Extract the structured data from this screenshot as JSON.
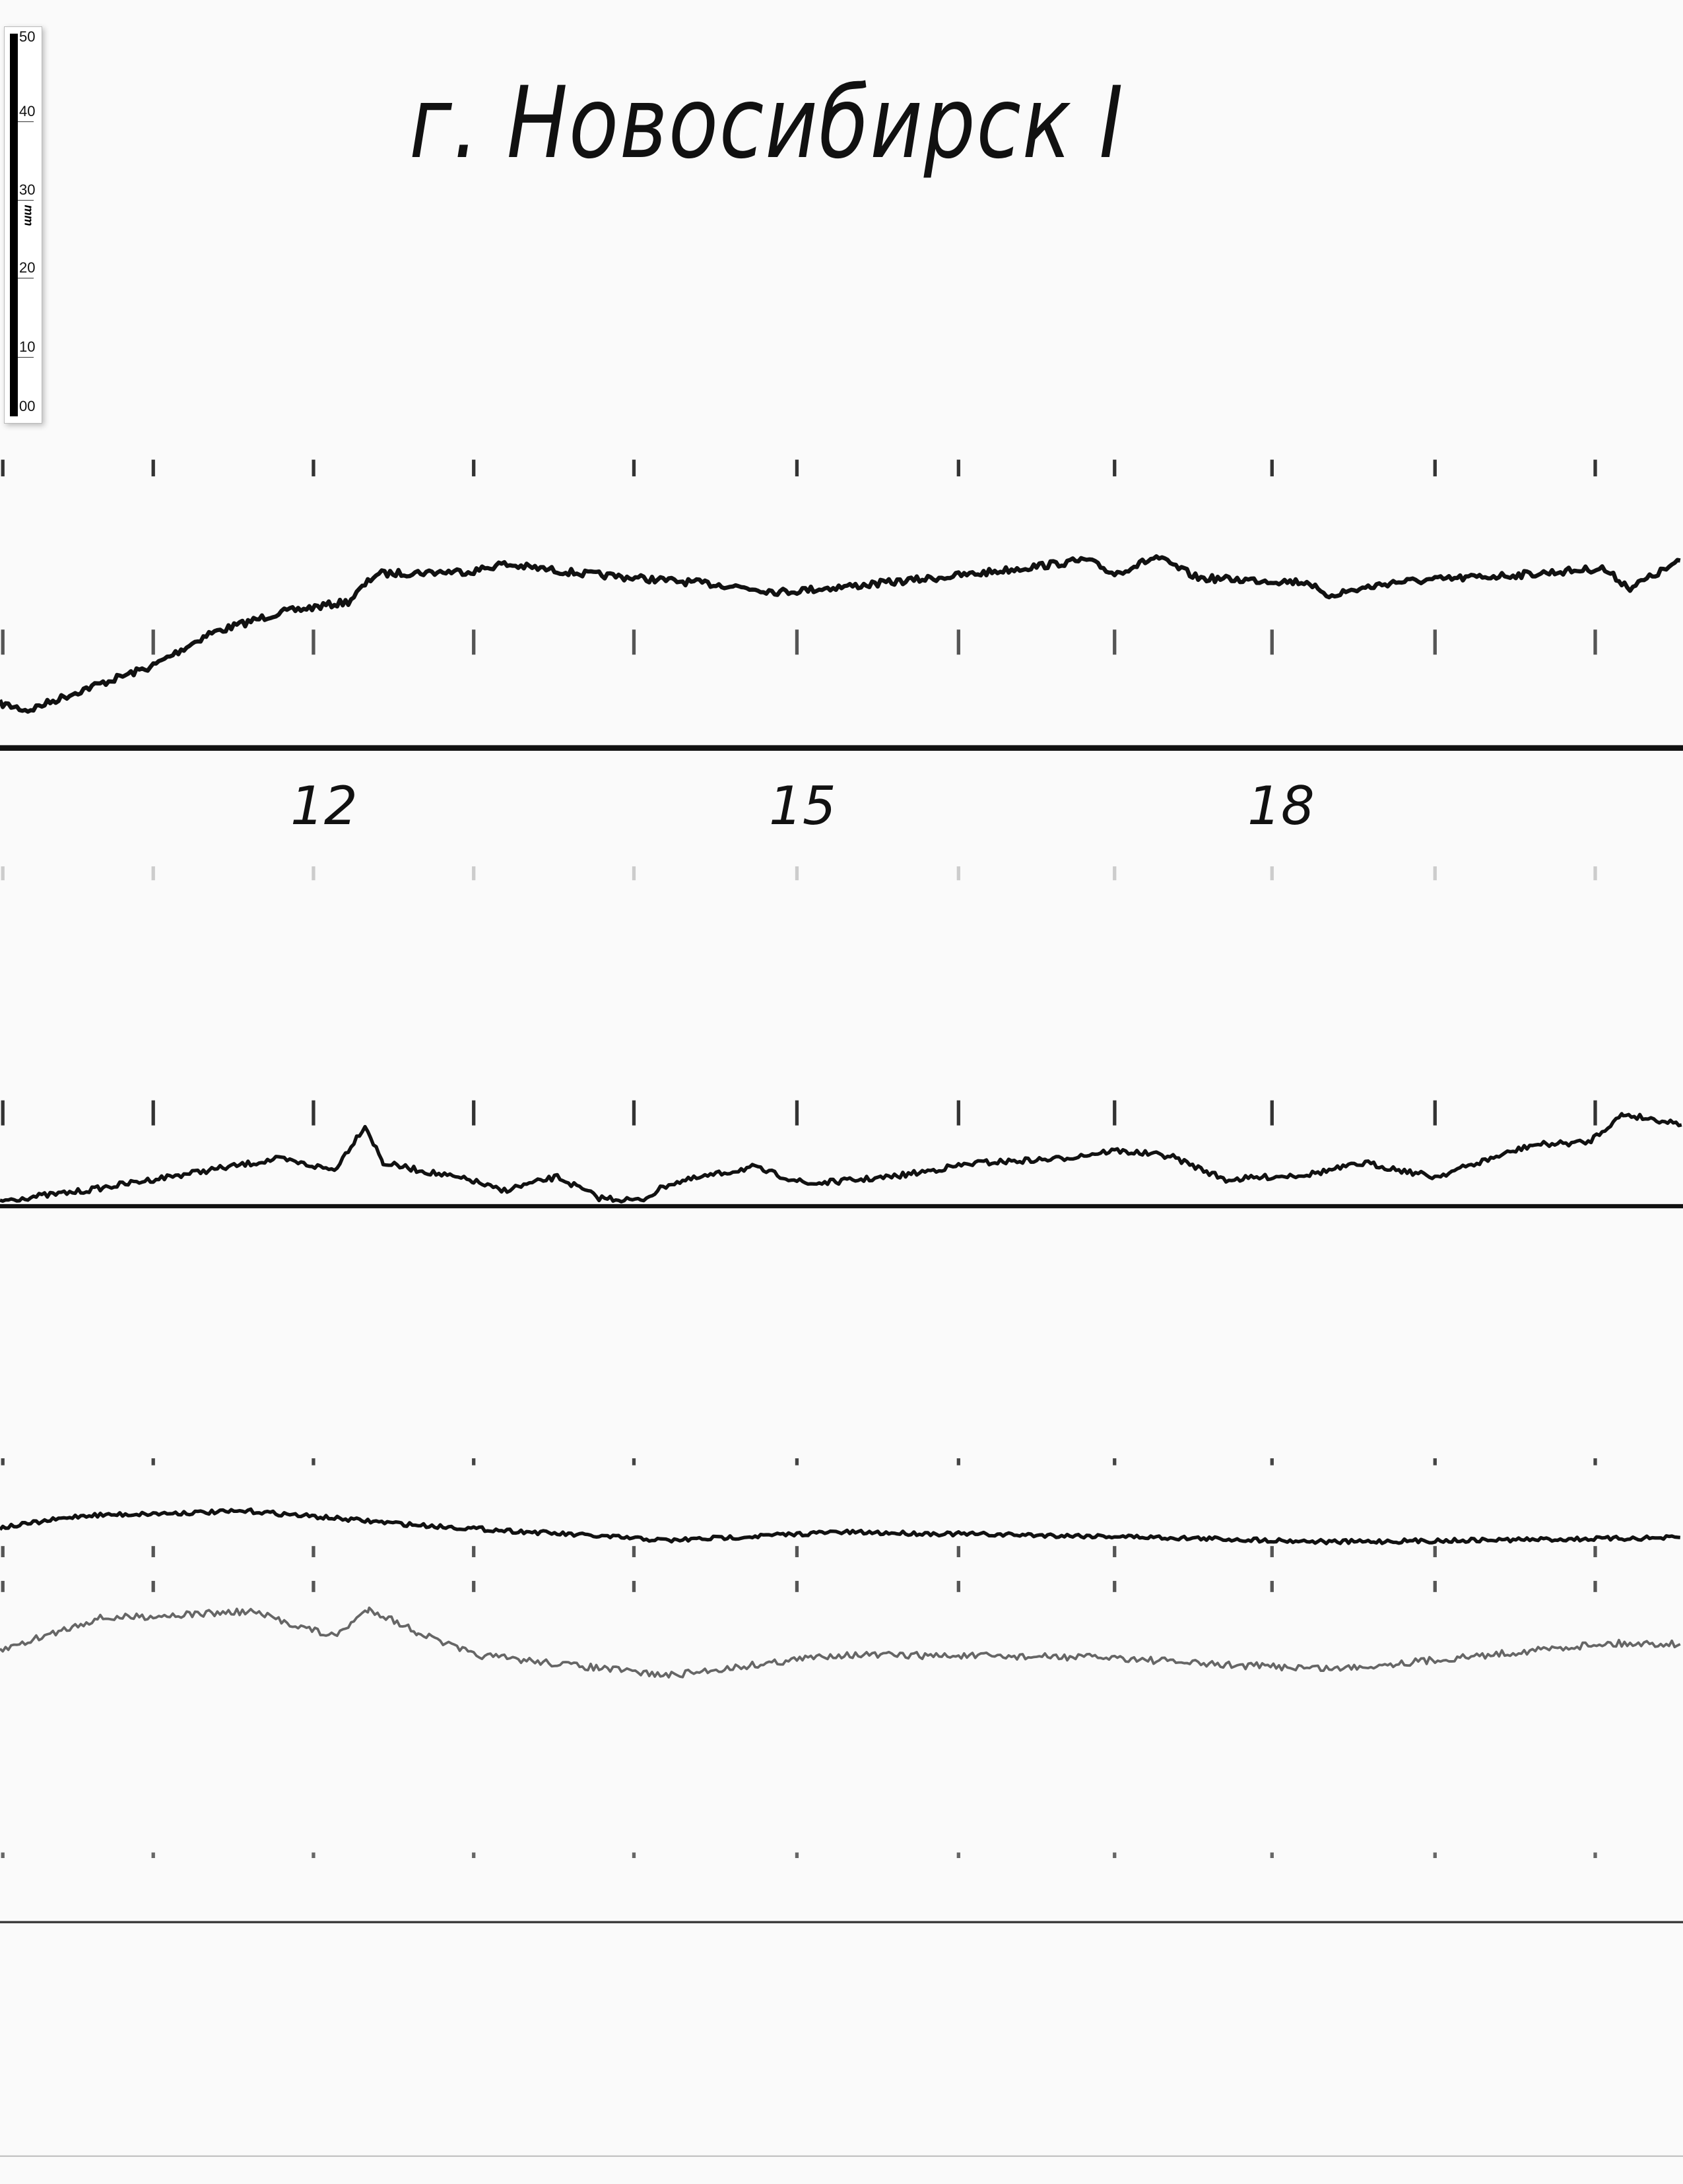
{
  "title": "г. Новосибирск I",
  "scale": {
    "unit": "mm",
    "labels": [
      "50",
      "40",
      "30",
      "20",
      "10",
      "00"
    ]
  },
  "hour_labels": [
    "12",
    "15",
    "18"
  ]
}
